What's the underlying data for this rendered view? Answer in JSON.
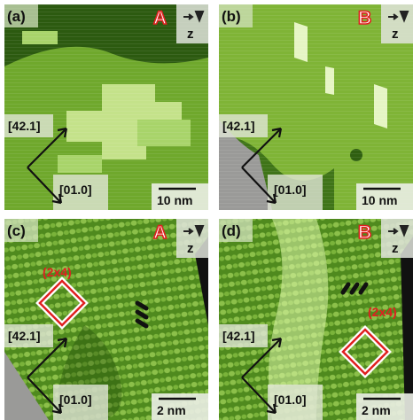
{
  "panels": [
    {
      "label": "(a)",
      "terminal": "A",
      "axis": "z",
      "dir_up": "[42.1]",
      "dir_down": "[01.0]",
      "scale": "10 nm"
    },
    {
      "label": "(b)",
      "terminal": "B",
      "axis": "z",
      "dir_up": "[42.1]",
      "dir_down": "[01.0]",
      "scale": "10 nm"
    },
    {
      "label": "(c)",
      "terminal": "A",
      "axis": "z",
      "dir_up": "[42.1]",
      "dir_down": "[01.0]",
      "scale": "2 nm",
      "reconstruction": "(2x4)"
    },
    {
      "label": "(d)",
      "terminal": "B",
      "axis": "z",
      "dir_up": "[42.1]",
      "dir_down": "[01.0]",
      "scale": "2 nm",
      "reconstruction": "(2x4)"
    }
  ]
}
